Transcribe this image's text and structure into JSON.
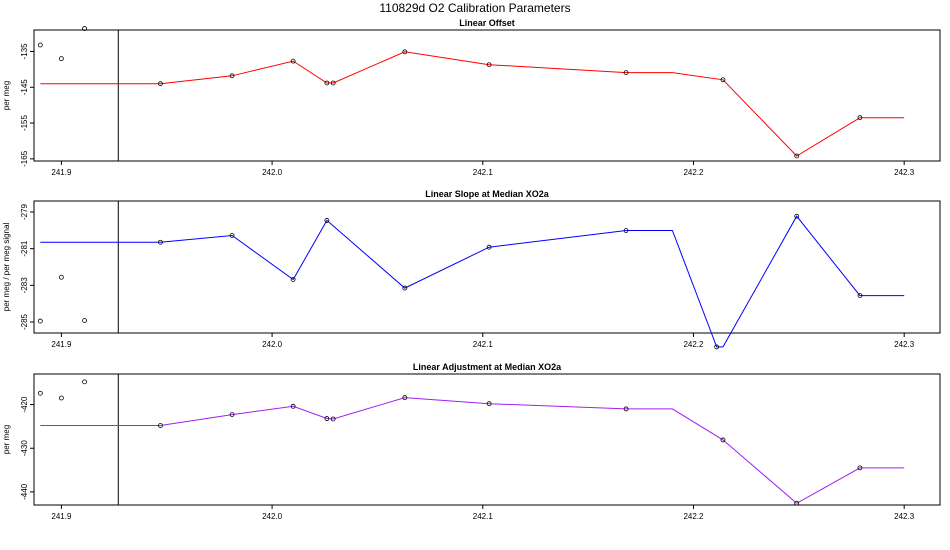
{
  "suptitle": "110829d   O2 Calibration Parameters",
  "chart_data": [
    {
      "type": "line",
      "title": "Linear Offset",
      "ylabel": "per meg",
      "color": "#ff0000",
      "xlim": [
        241.887,
        242.317
      ],
      "ylim": [
        -165.6,
        -129
      ],
      "xticks": [
        241.9,
        242.0,
        242.1,
        242.2,
        242.3
      ],
      "xtick_labels": [
        "241.9",
        "242.0",
        "242.1",
        "242.2",
        "242.3"
      ],
      "yticks": [
        -135,
        -145,
        -155,
        -165
      ],
      "ytick_labels": [
        "-135",
        "-145",
        "-155",
        "-165"
      ],
      "vline_x": 241.927,
      "line_x": [
        241.89,
        241.947,
        241.981,
        242.01,
        242.026,
        242.029,
        242.063,
        242.103,
        242.168,
        242.19,
        242.214,
        242.249,
        242.279,
        242.3
      ],
      "line_y": [
        -144.0,
        -144.0,
        -141.8,
        -137.7,
        -143.8,
        -143.8,
        -135.1,
        -138.7,
        -140.9,
        -140.9,
        -142.9,
        -164.2,
        -153.5,
        -153.5
      ],
      "markers_x": [
        241.89,
        241.9,
        241.911,
        241.947,
        241.981,
        242.01,
        242.026,
        242.029,
        242.063,
        242.103,
        242.168,
        242.214,
        242.249,
        242.279
      ],
      "markers_y": [
        -133.2,
        -137.0,
        -128.6,
        -144.0,
        -141.8,
        -137.7,
        -143.8,
        -143.8,
        -135.1,
        -138.7,
        -140.9,
        -142.9,
        -164.2,
        -153.5
      ]
    },
    {
      "type": "line",
      "title": "Linear Slope at Median XO2a",
      "ylabel": "per meg / per meg signal",
      "color": "#0000ff",
      "xlim": [
        241.887,
        242.317
      ],
      "ylim": [
        -285.6,
        -278.4
      ],
      "xticks": [
        241.9,
        242.0,
        242.1,
        242.2,
        242.3
      ],
      "xtick_labels": [
        "241.9",
        "242.0",
        "242.1",
        "242.2",
        "242.3"
      ],
      "yticks": [
        -279,
        -281,
        -283,
        -285
      ],
      "ytick_labels": [
        "-279",
        "-281",
        "-283",
        "-285"
      ],
      "vline_x": 241.927,
      "line_x": [
        241.89,
        241.947,
        241.981,
        242.01,
        242.026,
        242.063,
        242.103,
        242.168,
        242.19,
        242.211,
        242.214,
        242.249,
        242.279,
        242.3
      ],
      "line_y": [
        -280.65,
        -280.65,
        -280.28,
        -282.68,
        -279.46,
        -283.15,
        -280.92,
        -280.01,
        -280.01,
        -286.36,
        -286.36,
        -279.23,
        -283.56,
        -283.56
      ],
      "markers_x": [
        241.89,
        241.9,
        241.911,
        241.947,
        241.981,
        242.01,
        242.026,
        242.063,
        242.103,
        242.168,
        242.211,
        242.249,
        242.279
      ],
      "markers_y": [
        -284.95,
        -282.56,
        -284.92,
        -280.65,
        -280.28,
        -282.68,
        -279.46,
        -283.15,
        -280.92,
        -280.01,
        -286.36,
        -279.23,
        -283.56
      ]
    },
    {
      "type": "line",
      "title": "Linear Adjustment at Median XO2a",
      "ylabel": "per meg",
      "color": "#a020f0",
      "xlim": [
        241.887,
        242.317
      ],
      "ylim": [
        -443,
        -413
      ],
      "xticks": [
        241.9,
        242.0,
        242.1,
        242.2,
        242.3
      ],
      "xtick_labels": [
        "241.9",
        "242.0",
        "242.1",
        "242.2",
        "242.3"
      ],
      "yticks": [
        -420,
        -430,
        -440
      ],
      "ytick_labels": [
        "-420",
        "-430",
        "-440"
      ],
      "vline_x": 241.927,
      "line_x": [
        241.89,
        241.947,
        241.981,
        242.01,
        242.026,
        242.029,
        242.063,
        242.103,
        242.168,
        242.19,
        242.214,
        242.249,
        242.279,
        242.3
      ],
      "line_y": [
        -424.8,
        -424.8,
        -422.3,
        -420.4,
        -423.2,
        -423.3,
        -418.4,
        -419.8,
        -421.0,
        -421.0,
        -428.1,
        -442.6,
        -434.5,
        -434.5
      ],
      "markers_x": [
        241.89,
        241.9,
        241.911,
        241.947,
        241.981,
        242.01,
        242.026,
        242.029,
        242.063,
        242.103,
        242.168,
        242.214,
        242.249,
        242.279
      ],
      "markers_y": [
        -417.4,
        -418.5,
        -414.8,
        -424.8,
        -422.3,
        -420.4,
        -423.2,
        -423.3,
        -418.4,
        -419.8,
        -421.0,
        -428.1,
        -442.6,
        -434.5
      ]
    }
  ]
}
